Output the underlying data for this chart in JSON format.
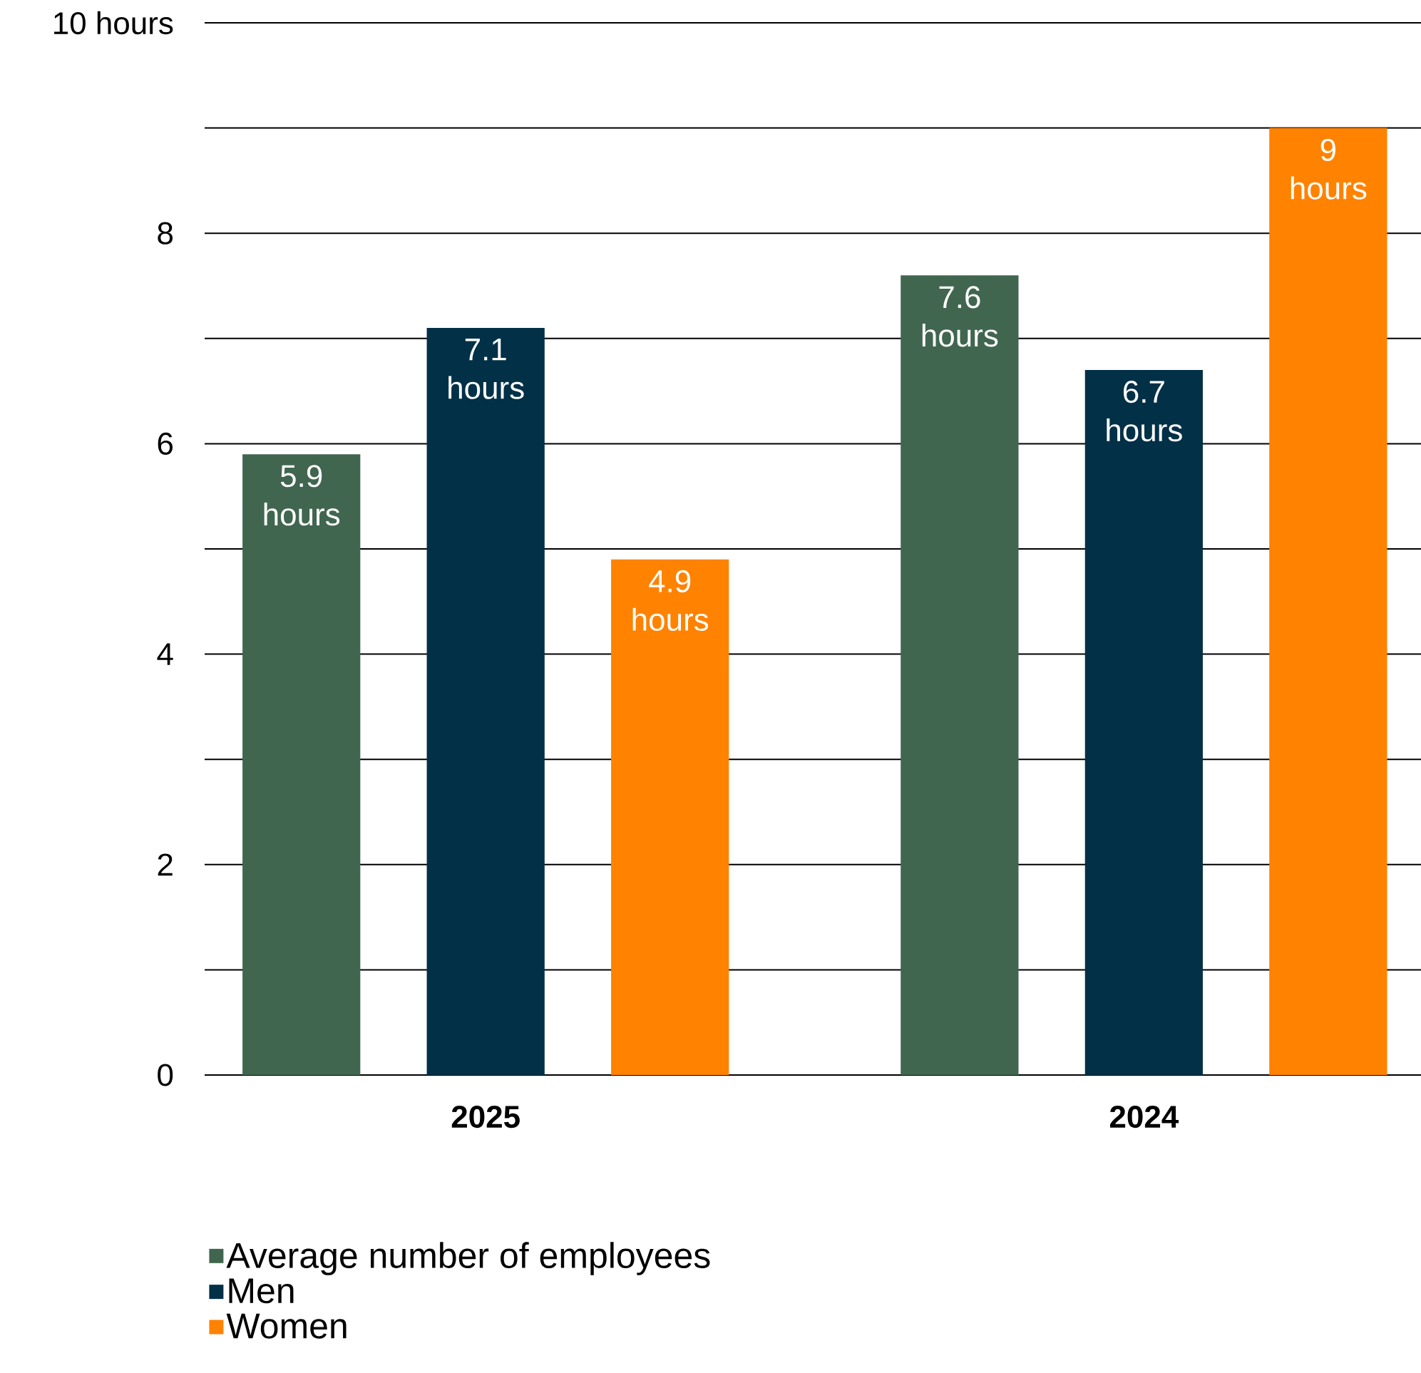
{
  "chart_data": {
    "type": "bar",
    "categories": [
      "2025",
      "2024"
    ],
    "series": [
      {
        "name": "Average number of employees",
        "color": "#41664f",
        "values": [
          5.9,
          7.6
        ],
        "value_labels": [
          "5.9 hours",
          "7.6 hours"
        ]
      },
      {
        "name": "Men",
        "color": "#023047",
        "values": [
          7.1,
          6.7
        ],
        "value_labels": [
          "7.1 hours",
          "6.7 hours"
        ]
      },
      {
        "name": "Women",
        "color": "#ff8200",
        "values": [
          4.9,
          9
        ],
        "value_labels": [
          "4.9 hours",
          "9 hours"
        ]
      }
    ],
    "ylim": [
      0,
      10
    ],
    "yticks": [
      0,
      {
        "value": 1,
        "label": null
      },
      2,
      {
        "value": 3,
        "label": null
      },
      4,
      {
        "value": 5,
        "label": null
      },
      6,
      {
        "value": 7,
        "label": null
      },
      8,
      {
        "value": 9,
        "label": null
      },
      {
        "value": 10,
        "label": "10 hours"
      }
    ],
    "grid": "y",
    "legend": "bottom left"
  }
}
